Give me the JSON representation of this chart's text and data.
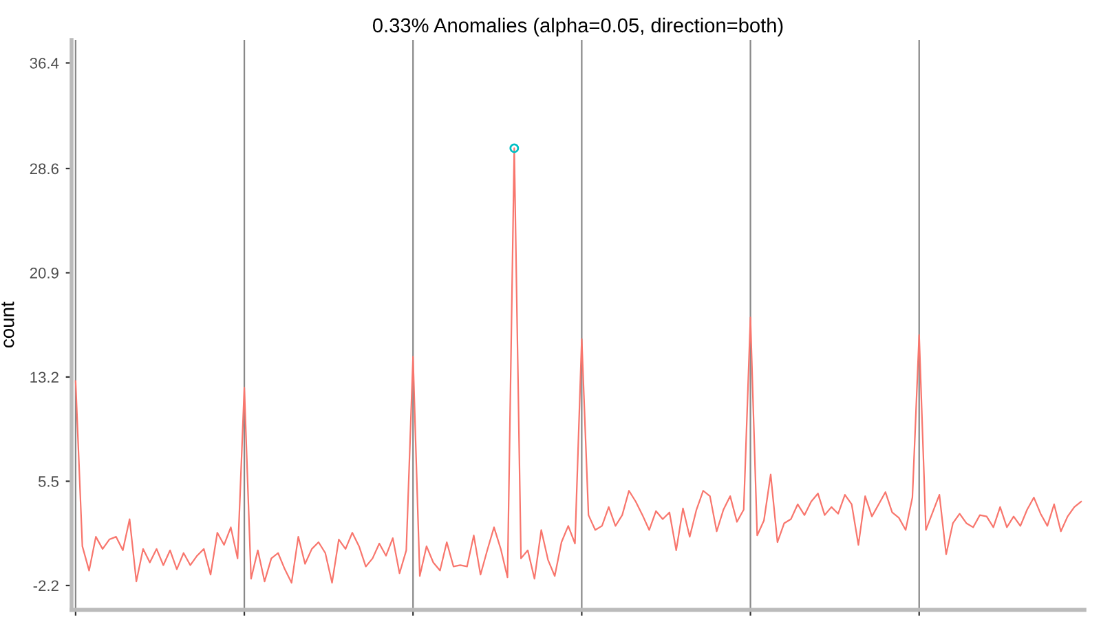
{
  "chart_data": {
    "type": "line",
    "title": "0.33% Anomalies (alpha=0.05, direction=both)",
    "ylabel": "count",
    "categories": [
      null,
      null,
      null,
      null,
      null,
      null,
      null,
      null,
      null,
      null,
      null,
      null,
      null,
      null,
      null,
      null,
      null,
      null,
      null,
      null,
      null,
      null,
      null,
      null,
      null,
      null,
      null,
      null,
      null,
      null,
      null,
      null,
      null,
      null,
      null,
      null,
      null,
      null,
      null,
      null,
      null,
      null,
      null,
      null,
      null,
      null,
      null,
      null,
      null,
      null,
      null,
      null,
      null,
      null,
      null,
      null,
      null,
      null,
      null,
      null,
      null,
      null,
      null,
      null,
      null,
      null,
      null,
      null,
      null,
      null,
      null,
      null,
      null,
      null,
      null,
      null,
      null,
      null,
      null,
      null,
      null,
      null,
      null,
      null,
      null,
      null,
      null,
      null,
      null,
      null,
      null,
      null,
      null,
      null,
      null,
      null,
      null,
      null,
      null,
      null,
      null,
      null,
      null,
      null,
      null,
      null,
      null,
      null,
      null,
      null,
      null,
      null,
      null,
      null,
      null,
      null,
      null,
      null,
      null,
      null,
      null,
      null,
      null,
      null,
      null,
      null,
      null,
      null,
      null,
      null,
      null,
      null,
      null,
      null,
      null,
      null,
      null,
      null,
      null,
      null,
      null,
      null,
      null,
      null,
      null,
      null,
      null,
      null,
      null,
      null
    ],
    "ylim": [
      -4.0,
      38.1
    ],
    "yticks": [
      -2.2,
      5.5,
      13.2,
      20.9,
      28.6,
      36.4
    ],
    "series": [
      {
        "color": "#f8766d",
        "values": [
          12.9,
          0.7,
          -1.1,
          1.4,
          0.5,
          1.2,
          1.4,
          0.4,
          2.7,
          -1.9,
          0.5,
          -0.5,
          0.5,
          -0.7,
          0.4,
          -1.0,
          0.2,
          -0.7,
          0.0,
          0.5,
          -1.4,
          1.7,
          0.8,
          2.1,
          -0.2,
          12.4,
          -1.7,
          0.4,
          -1.9,
          -0.2,
          0.2,
          -1.0,
          -2.0,
          1.4,
          -0.6,
          0.5,
          1.0,
          0.2,
          -2.0,
          1.2,
          0.5,
          1.7,
          0.7,
          -0.8,
          -0.2,
          0.9,
          0.0,
          1.3,
          -1.3,
          0.4,
          14.7,
          -1.5,
          0.7,
          -0.5,
          -1.1,
          1.0,
          -0.8,
          -0.7,
          -0.8,
          1.5,
          -1.4,
          0.4,
          2.1,
          0.5,
          -1.6,
          30.1,
          -0.2,
          0.4,
          -1.7,
          1.9,
          -0.3,
          -1.5,
          1.0,
          2.2,
          0.9,
          16.0,
          3.0,
          1.9,
          2.2,
          3.6,
          2.2,
          3.0,
          4.8,
          4.0,
          3.0,
          1.9,
          3.3,
          2.7,
          3.2,
          0.4,
          3.5,
          1.4,
          3.4,
          4.8,
          4.4,
          1.8,
          3.4,
          4.4,
          2.5,
          3.4,
          17.6,
          1.5,
          2.6,
          6.0,
          1.0,
          2.4,
          2.7,
          3.8,
          3.0,
          4.0,
          4.6,
          3.0,
          3.6,
          3.1,
          4.5,
          3.8,
          0.8,
          4.4,
          2.9,
          3.8,
          4.7,
          3.2,
          2.8,
          1.9,
          4.3,
          16.3,
          1.9,
          3.2,
          4.5,
          0.1,
          2.4,
          3.1,
          2.4,
          2.1,
          3.0,
          2.9,
          2.1,
          3.6,
          2.1,
          2.9,
          2.2,
          3.4,
          4.3,
          3.1,
          2.2,
          3.8,
          1.8,
          2.9,
          3.6,
          4.0
        ]
      },
      {
        "type": "scatter",
        "color": "#00bfc4",
        "marker": "circle",
        "values": [
          null,
          null,
          null,
          null,
          null,
          null,
          null,
          null,
          null,
          null,
          null,
          null,
          null,
          null,
          null,
          null,
          null,
          null,
          null,
          null,
          null,
          null,
          null,
          null,
          null,
          null,
          null,
          null,
          null,
          null,
          null,
          null,
          null,
          null,
          null,
          null,
          null,
          null,
          null,
          null,
          null,
          null,
          null,
          null,
          null,
          null,
          null,
          null,
          null,
          null,
          null,
          null,
          null,
          null,
          null,
          null,
          null,
          null,
          null,
          null,
          null,
          null,
          null,
          null,
          null,
          30.1,
          null,
          null,
          null,
          null,
          null,
          null,
          null,
          null,
          null,
          null,
          null,
          null,
          null,
          null,
          null,
          null,
          null,
          null,
          null,
          null,
          null,
          null,
          null,
          null,
          null,
          null,
          null,
          null,
          null,
          null,
          null,
          null,
          null,
          null,
          null,
          null,
          null,
          null,
          null,
          null,
          null,
          null,
          null,
          null,
          null,
          null,
          null,
          null,
          null,
          null,
          null,
          null,
          null,
          null,
          null,
          null,
          null,
          null,
          null,
          null,
          null,
          null,
          null,
          null,
          null,
          null,
          null,
          null,
          null,
          null,
          null,
          null,
          null,
          null,
          null,
          null,
          null,
          null,
          null,
          null,
          null,
          null,
          null,
          null
        ]
      }
    ]
  }
}
